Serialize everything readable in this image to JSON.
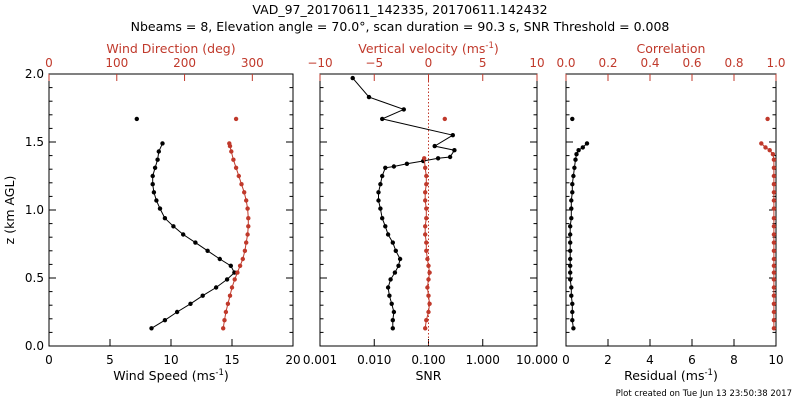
{
  "figure": {
    "title_line1": "VAD_97_20170611_142335, 20170611.142432",
    "title_line2": "Nbeams = 8, Elevation angle = 70.0°, scan duration = 90.3 s, SNR Threshold = 0.008",
    "footer": "Plot created on Tue Jun 13 23:50:38 2017",
    "colors": {
      "black": "#000000",
      "red": "#c0392b"
    }
  },
  "chart_data": [
    {
      "type": "line",
      "panel": "wind",
      "ylabel": "z (km AGL)",
      "ylim": [
        0,
        2
      ],
      "yticks": [
        "0.0",
        "0.5",
        "1.0",
        "1.5",
        "2.0"
      ],
      "y_tick_values": [
        0,
        0.5,
        1.0,
        1.5,
        2.0
      ],
      "bottom_axis": {
        "label": "Wind Speed (ms",
        "label_sup": "-1",
        "label_end": ")",
        "range": [
          0,
          20
        ],
        "tick_values": [
          0,
          5,
          10,
          15,
          20
        ],
        "ticks": [
          "0",
          "5",
          "10",
          "15",
          "20"
        ]
      },
      "top_axis": {
        "label": "Wind Direction (deg)",
        "range": [
          0,
          360
        ],
        "tick_values": [
          0,
          100,
          200,
          300
        ],
        "ticks": [
          "0",
          "100",
          "200",
          "300"
        ],
        "color": "#c0392b"
      },
      "series": [
        {
          "axis": "bottom",
          "color": "#000000",
          "x": [
            8.4,
            9.5,
            10.5,
            11.6,
            12.6,
            13.7,
            14.6,
            15.2,
            14.9,
            14.0,
            13.0,
            12.0,
            11.0,
            10.2,
            9.5,
            9.1,
            8.8,
            8.6,
            8.5,
            8.5,
            8.7,
            8.9,
            9.0,
            9.3
          ],
          "y": [
            0.13,
            0.19,
            0.25,
            0.31,
            0.37,
            0.43,
            0.49,
            0.54,
            0.59,
            0.64,
            0.7,
            0.76,
            0.82,
            0.88,
            0.94,
            1.01,
            1.07,
            1.13,
            1.19,
            1.25,
            1.31,
            1.37,
            1.43,
            1.49
          ]
        },
        {
          "axis": "bottom",
          "color": "#000000",
          "x": [
            7.2
          ],
          "y": [
            1.67
          ]
        },
        {
          "axis": "top",
          "color": "#c0392b",
          "x": [
            257,
            259,
            261,
            264,
            267,
            270,
            274,
            278,
            282,
            286,
            289,
            291,
            293,
            294,
            294,
            293,
            291,
            288,
            284,
            280,
            276,
            272,
            269,
            267,
            266
          ],
          "y": [
            0.13,
            0.19,
            0.25,
            0.31,
            0.37,
            0.43,
            0.49,
            0.54,
            0.59,
            0.64,
            0.7,
            0.76,
            0.82,
            0.88,
            0.94,
            1.01,
            1.07,
            1.13,
            1.19,
            1.25,
            1.31,
            1.37,
            1.43,
            1.47,
            1.49
          ]
        },
        {
          "axis": "top",
          "color": "#c0392b",
          "x": [
            276
          ],
          "y": [
            1.67
          ]
        }
      ]
    },
    {
      "type": "line",
      "panel": "snr",
      "ylim": [
        0,
        2
      ],
      "bottom_axis": {
        "label": "SNR",
        "scale": "log",
        "range": [
          0.001,
          10
        ],
        "tick_values": [
          0.001,
          0.01,
          0.1,
          1,
          10
        ],
        "ticks": [
          "0.001",
          "0.010",
          "0.100",
          "1.000",
          "10.000"
        ]
      },
      "top_axis": {
        "label": "Vertical velocity (ms",
        "label_sup": "-1",
        "label_end": ")",
        "range": [
          -10,
          10
        ],
        "tick_values": [
          -10,
          -5,
          0,
          5,
          10
        ],
        "ticks": [
          "−10",
          "−5",
          "0",
          "5",
          "10"
        ],
        "color": "#c0392b"
      },
      "reference_line": {
        "axis": "bottom",
        "x": 0.1,
        "style": "dotted",
        "color": "#c0392b"
      },
      "series": [
        {
          "axis": "bottom",
          "color": "#000000",
          "x": [
            0.022,
            0.022,
            0.023,
            0.021,
            0.019,
            0.018,
            0.02,
            0.024,
            0.028,
            0.03,
            0.025,
            0.022,
            0.018,
            0.016,
            0.014,
            0.013,
            0.012,
            0.012,
            0.013,
            0.014,
            0.016,
            0.023,
            0.04,
            0.08,
            0.15,
            0.25,
            0.3,
            0.13,
            0.28,
            0.014,
            0.035,
            0.008,
            0.004
          ],
          "y": [
            0.13,
            0.19,
            0.25,
            0.31,
            0.37,
            0.43,
            0.49,
            0.54,
            0.59,
            0.64,
            0.7,
            0.76,
            0.82,
            0.88,
            0.94,
            1.01,
            1.07,
            1.13,
            1.19,
            1.25,
            1.31,
            1.32,
            1.34,
            1.36,
            1.38,
            1.39,
            1.44,
            1.47,
            1.55,
            1.67,
            1.74,
            1.83,
            1.97
          ]
        },
        {
          "axis": "top",
          "color": "#c0392b",
          "x": [
            -0.3,
            -0.2,
            0.0,
            0.1,
            0.0,
            -0.1,
            0.0,
            0.1,
            0.0,
            -0.1,
            -0.2,
            -0.2,
            -0.3,
            -0.3,
            -0.2,
            -0.2,
            -0.3,
            -0.3,
            -0.2,
            -0.2,
            -0.3,
            -0.4
          ],
          "y": [
            0.13,
            0.19,
            0.25,
            0.31,
            0.37,
            0.43,
            0.49,
            0.54,
            0.59,
            0.64,
            0.7,
            0.76,
            0.82,
            0.88,
            0.94,
            1.01,
            1.07,
            1.13,
            1.19,
            1.25,
            1.31,
            1.38
          ]
        },
        {
          "axis": "top",
          "color": "#c0392b",
          "x": [
            1.5
          ],
          "y": [
            1.67
          ]
        }
      ]
    },
    {
      "type": "line",
      "panel": "corr",
      "ylim": [
        0,
        2
      ],
      "bottom_axis": {
        "label": "Residual (ms",
        "label_sup": "-1",
        "label_end": ")",
        "range": [
          0,
          10
        ],
        "tick_values": [
          0,
          2,
          4,
          6,
          8,
          10
        ],
        "ticks": [
          "0",
          "2",
          "4",
          "6",
          "8",
          "10"
        ]
      },
      "top_axis": {
        "label": "Correlation",
        "range": [
          0,
          1
        ],
        "tick_values": [
          0,
          0.2,
          0.4,
          0.6,
          0.8,
          1.0
        ],
        "ticks": [
          "0.0",
          "0.2",
          "0.4",
          "0.6",
          "0.8",
          "1.0"
        ],
        "color": "#c0392b"
      },
      "series": [
        {
          "axis": "bottom",
          "color": "#000000",
          "x": [
            0.35,
            0.3,
            0.3,
            0.3,
            0.25,
            0.25,
            0.2,
            0.2,
            0.2,
            0.2,
            0.2,
            0.2,
            0.2,
            0.2,
            0.25,
            0.25,
            0.25,
            0.3,
            0.3,
            0.35,
            0.4,
            0.45,
            0.5,
            0.6,
            0.8,
            1.0
          ],
          "y": [
            0.13,
            0.19,
            0.25,
            0.31,
            0.37,
            0.43,
            0.49,
            0.54,
            0.59,
            0.64,
            0.7,
            0.76,
            0.82,
            0.88,
            0.94,
            1.01,
            1.07,
            1.13,
            1.19,
            1.25,
            1.31,
            1.37,
            1.41,
            1.44,
            1.46,
            1.49
          ]
        },
        {
          "axis": "bottom",
          "color": "#000000",
          "x": [
            0.3
          ],
          "y": [
            1.67
          ]
        },
        {
          "axis": "top",
          "color": "#c0392b",
          "x": [
            0.99,
            0.99,
            0.99,
            0.99,
            0.99,
            0.99,
            0.99,
            0.99,
            0.99,
            0.99,
            0.99,
            0.99,
            0.99,
            0.99,
            0.99,
            0.99,
            0.99,
            0.99,
            0.99,
            0.99,
            0.99,
            0.99,
            0.985,
            0.97,
            0.95,
            0.93
          ],
          "y": [
            0.13,
            0.19,
            0.25,
            0.31,
            0.37,
            0.43,
            0.49,
            0.54,
            0.59,
            0.64,
            0.7,
            0.76,
            0.82,
            0.88,
            0.94,
            1.01,
            1.07,
            1.13,
            1.19,
            1.25,
            1.31,
            1.37,
            1.41,
            1.44,
            1.46,
            1.49
          ]
        },
        {
          "axis": "top",
          "color": "#c0392b",
          "x": [
            0.96
          ],
          "y": [
            1.67
          ]
        }
      ]
    }
  ]
}
